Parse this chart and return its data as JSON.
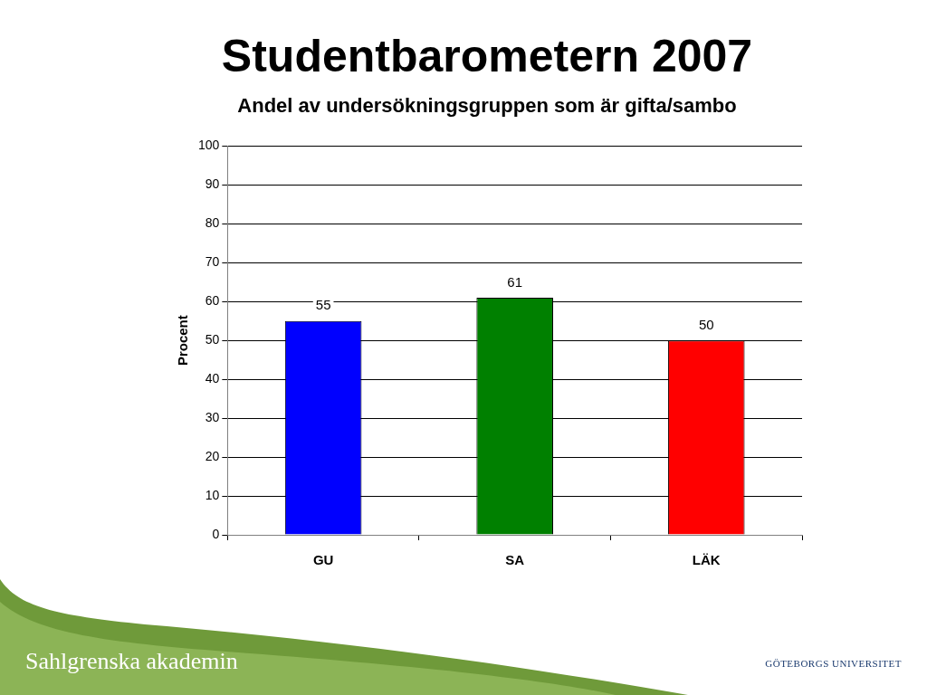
{
  "chart_data": {
    "type": "bar",
    "title": "Studentbarometern 2007",
    "subtitle": "Andel av undersökningsgruppen som är gifta/sambo",
    "ylabel": "Procent",
    "categories": [
      "GU",
      "SA",
      "LÄK"
    ],
    "values": [
      55,
      61,
      50
    ],
    "colors": [
      "#0000ff",
      "#008000",
      "#ff0000"
    ],
    "ylim": [
      0,
      100
    ],
    "yticks": [
      0,
      10,
      20,
      30,
      40,
      50,
      60,
      70,
      80,
      90,
      100
    ],
    "grid": "y",
    "legend": false,
    "data_labels": true,
    "annotations": [
      "Sahlgrenska akademin",
      "GÖTEBORGS UNIVERSITET"
    ]
  }
}
